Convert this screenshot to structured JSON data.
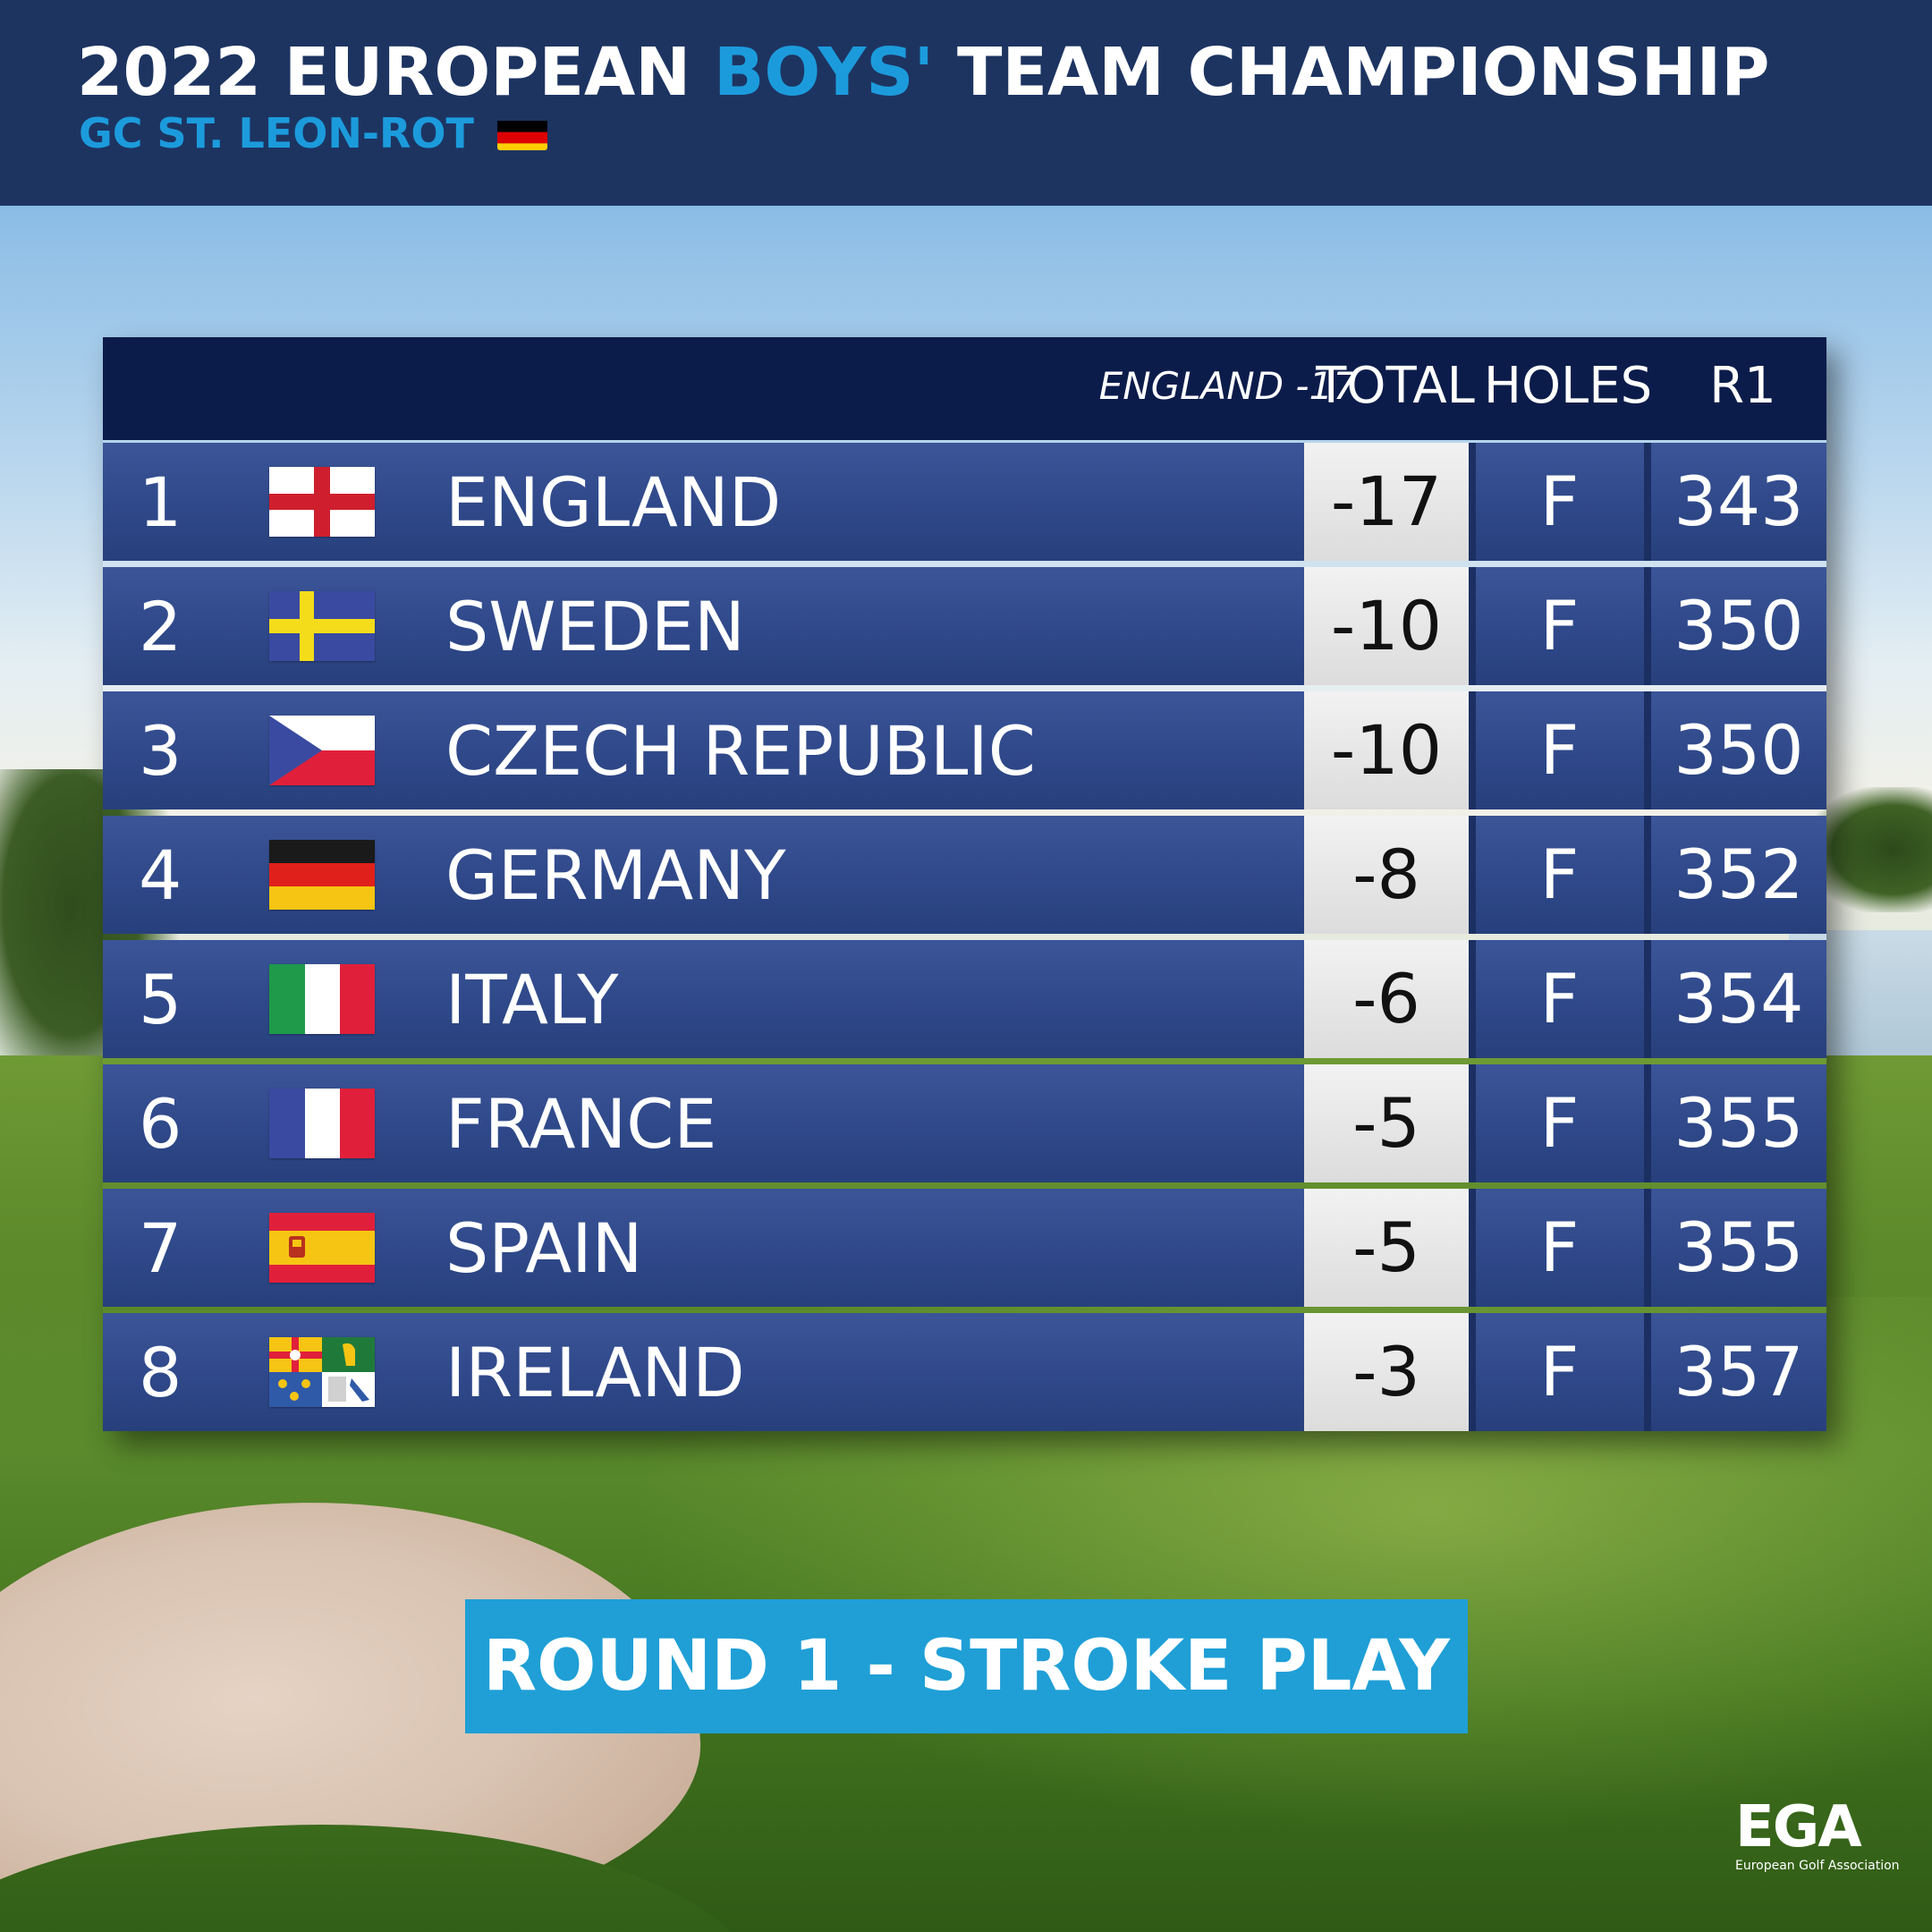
{
  "header": {
    "title_part1": "2022 EUROPEAN ",
    "title_accent": "BOYS'",
    "title_part2": " TEAM CHAMPIONSHIP",
    "venue": "GC ST. LEON-ROT",
    "venue_flag_icon": "germany-flag-icon"
  },
  "table": {
    "leader_note": "ENGLAND -17",
    "columns": {
      "total": "TOTAL",
      "holes": "HOLES",
      "r1": "R1"
    },
    "rows": [
      {
        "pos": "1",
        "team": "ENGLAND",
        "flag_icon": "england-flag-icon",
        "total": "-17",
        "holes": "F",
        "r1": "343"
      },
      {
        "pos": "2",
        "team": "SWEDEN",
        "flag_icon": "sweden-flag-icon",
        "total": "-10",
        "holes": "F",
        "r1": "350"
      },
      {
        "pos": "3",
        "team": "CZECH REPUBLIC",
        "flag_icon": "czech-republic-flag-icon",
        "total": "-10",
        "holes": "F",
        "r1": "350"
      },
      {
        "pos": "4",
        "team": "GERMANY",
        "flag_icon": "germany-flag-icon",
        "total": "-8",
        "holes": "F",
        "r1": "352"
      },
      {
        "pos": "5",
        "team": "ITALY",
        "flag_icon": "italy-flag-icon",
        "total": "-6",
        "holes": "F",
        "r1": "354"
      },
      {
        "pos": "6",
        "team": "FRANCE",
        "flag_icon": "france-flag-icon",
        "total": "-5",
        "holes": "F",
        "r1": "355"
      },
      {
        "pos": "7",
        "team": "SPAIN",
        "flag_icon": "spain-flag-icon",
        "total": "-5",
        "holes": "F",
        "r1": "355"
      },
      {
        "pos": "8",
        "team": "IRELAND",
        "flag_icon": "ireland-four-provinces-flag-icon",
        "total": "-3",
        "holes": "F",
        "r1": "357"
      }
    ]
  },
  "round_banner": "ROUND 1 - STROKE PLAY",
  "logo": {
    "mark": "EGA",
    "subtitle": "European Golf Association"
  },
  "colors": {
    "header_bg": "#1d3461",
    "accent_blue": "#1c9bdc",
    "table_head_bg": "#0c1c4a",
    "row_bg": "#2f4889",
    "total_cell_bg": "#e6e6e6",
    "banner_bg": "#1f9fd6"
  }
}
